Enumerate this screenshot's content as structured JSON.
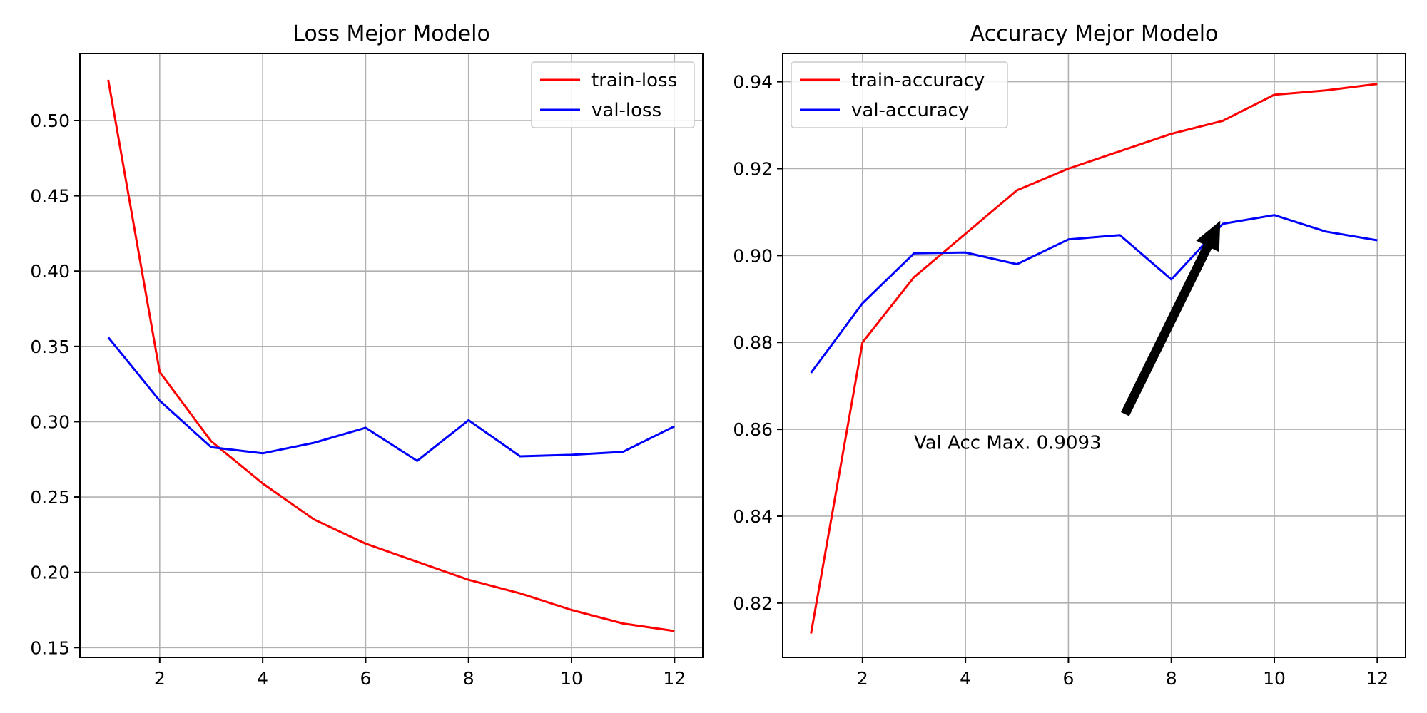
{
  "chart_data": [
    {
      "type": "line",
      "title": "Loss Mejor Modelo",
      "xlabel": "",
      "ylabel": "",
      "x": [
        1,
        2,
        3,
        4,
        5,
        6,
        7,
        8,
        9,
        10,
        11,
        12
      ],
      "xlim": [
        0.45,
        12.55
      ],
      "ylim": [
        0.1435,
        0.5445
      ],
      "xticks": [
        2,
        4,
        6,
        8,
        10,
        12
      ],
      "yticks": [
        0.15,
        0.2,
        0.25,
        0.3,
        0.35,
        0.4,
        0.45,
        0.5
      ],
      "ytick_labels": [
        "0.15",
        "0.20",
        "0.25",
        "0.30",
        "0.35",
        "0.40",
        "0.45",
        "0.50"
      ],
      "grid": true,
      "legend_position": "upper right",
      "series": [
        {
          "name": "train-loss",
          "color": "#ff0000",
          "values": [
            0.527,
            0.333,
            0.287,
            0.259,
            0.235,
            0.219,
            0.207,
            0.195,
            0.186,
            0.175,
            0.166,
            0.161
          ]
        },
        {
          "name": "val-loss",
          "color": "#0000ff",
          "values": [
            0.356,
            0.314,
            0.283,
            0.279,
            0.286,
            0.296,
            0.274,
            0.301,
            0.277,
            0.278,
            0.28,
            0.297
          ]
        }
      ]
    },
    {
      "type": "line",
      "title": "Accuracy Mejor Modelo",
      "xlabel": "",
      "ylabel": "",
      "x": [
        1,
        2,
        3,
        4,
        5,
        6,
        7,
        8,
        9,
        10,
        11,
        12
      ],
      "xlim": [
        0.45,
        12.55
      ],
      "ylim": [
        0.8075,
        0.9465
      ],
      "xticks": [
        2,
        4,
        6,
        8,
        10,
        12
      ],
      "yticks": [
        0.82,
        0.84,
        0.86,
        0.88,
        0.9,
        0.92,
        0.94
      ],
      "ytick_labels": [
        "0.82",
        "0.84",
        "0.86",
        "0.88",
        "0.90",
        "0.92",
        "0.94"
      ],
      "grid": true,
      "legend_position": "upper left",
      "series": [
        {
          "name": "train-accuracy",
          "color": "#ff0000",
          "values": [
            0.813,
            0.88,
            0.895,
            0.905,
            0.915,
            0.92,
            0.924,
            0.928,
            0.931,
            0.937,
            0.938,
            0.9395
          ]
        },
        {
          "name": "val-accuracy",
          "color": "#0000ff",
          "values": [
            0.873,
            0.889,
            0.9005,
            0.9007,
            0.898,
            0.9037,
            0.9047,
            0.8945,
            0.9073,
            0.9093,
            0.9055,
            0.9035
          ]
        }
      ],
      "annotation": {
        "text": "Val Acc Max. 0.9093",
        "text_position": [
          3,
          0.857
        ],
        "arrow_from": [
          7.1,
          0.8635
        ],
        "arrow_to": [
          8.95,
          0.908
        ],
        "arrow_color": "#000000"
      }
    }
  ]
}
